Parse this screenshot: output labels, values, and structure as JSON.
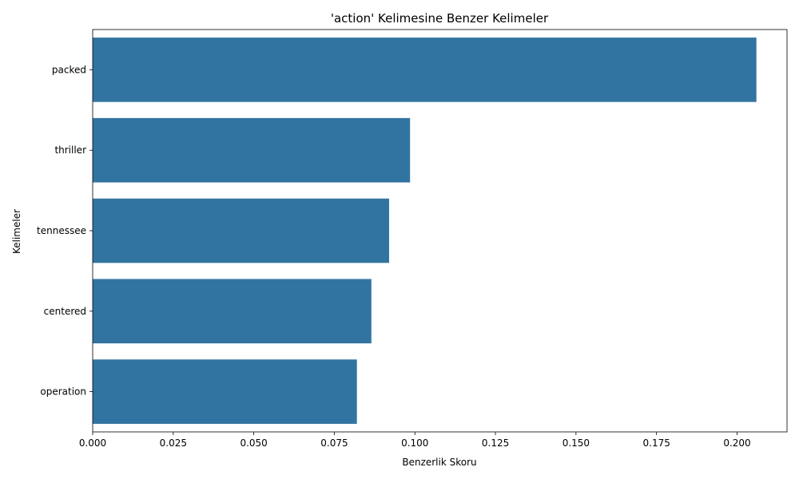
{
  "chart_data": {
    "type": "bar",
    "orientation": "horizontal",
    "title": "'action' Kelimesine Benzer Kelimeler",
    "xlabel": "Benzerlik Skoru",
    "ylabel": "Kelimeler",
    "categories": [
      "packed",
      "thriller",
      "tennessee",
      "centered",
      "operation"
    ],
    "values": [
      0.206,
      0.0985,
      0.092,
      0.0865,
      0.082
    ],
    "xlim": [
      0,
      0.2155
    ],
    "xticks": [
      "0.000",
      "0.025",
      "0.050",
      "0.075",
      "0.100",
      "0.125",
      "0.150",
      "0.175",
      "0.200"
    ],
    "grid": false,
    "legend": "none",
    "bar_color": "#3274a1"
  }
}
